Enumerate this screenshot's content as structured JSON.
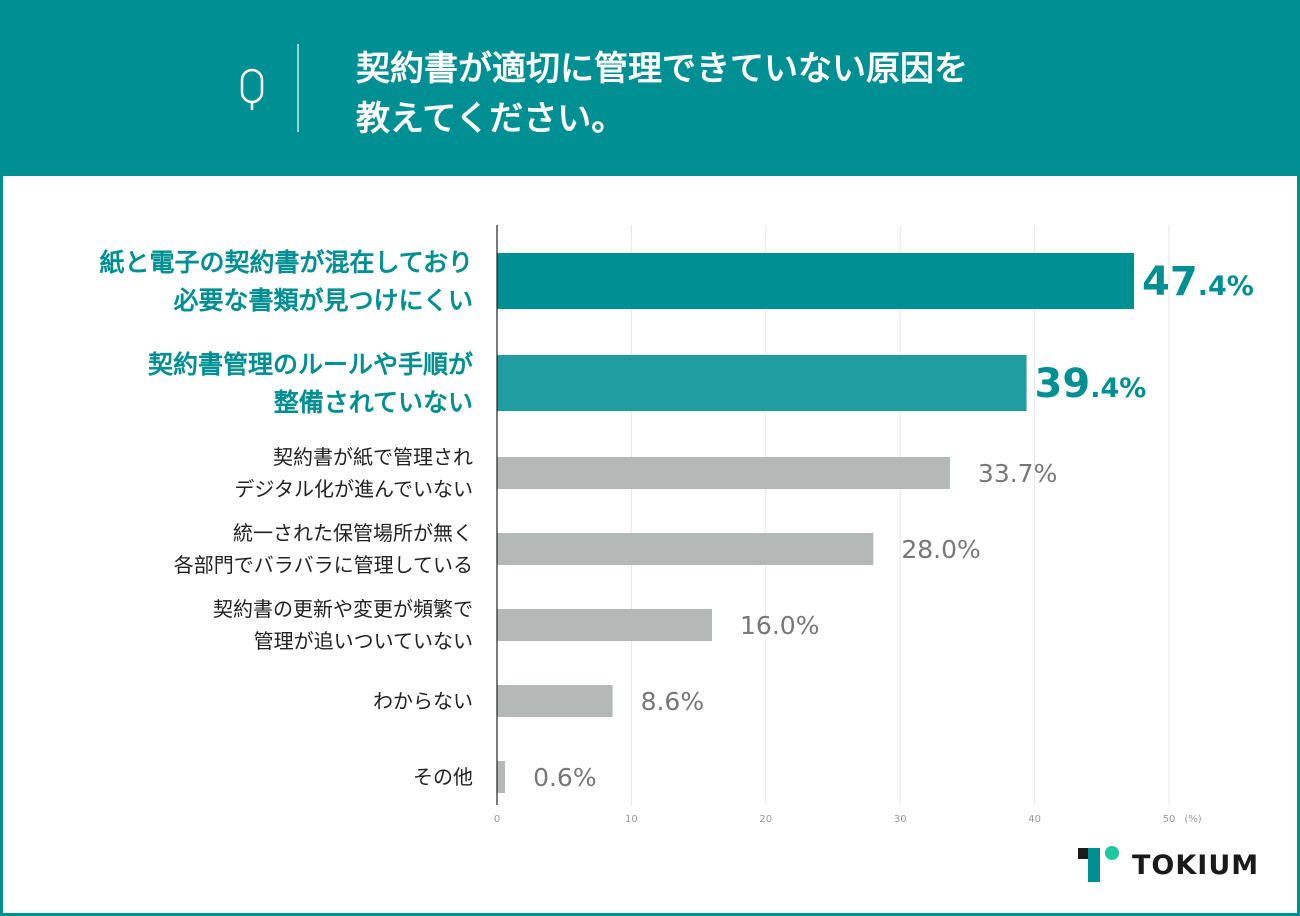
{
  "header": {
    "q_label": "Q",
    "title_line1": "契約書が適切に管理できていない原因を",
    "title_line2": "教えてください。"
  },
  "chart_data": {
    "type": "bar",
    "orientation": "horizontal",
    "title": "契約書が適切に管理できていない原因を教えてください。",
    "categories": [
      [
        "紙と電子の契約書が混在しており",
        "必要な書類が見つけにくい"
      ],
      [
        "契約書管理のルールや手順が",
        "整備されていない"
      ],
      [
        "契約書が紙で管理され",
        "デジタル化が進んでいない"
      ],
      [
        "統一された保管場所が無く",
        "各部門でバラバラに管理している"
      ],
      [
        "契約書の更新や変更が頻繁で",
        "管理が追いついていない"
      ],
      [
        "わからない"
      ],
      [
        "その他"
      ]
    ],
    "values": [
      47.4,
      39.4,
      33.7,
      28.0,
      16.0,
      8.6,
      0.6
    ],
    "value_labels": [
      "47.4%",
      "39.4%",
      "33.7%",
      "28.0%",
      "16.0%",
      "8.6%",
      "0.6%"
    ],
    "highlight": [
      true,
      true,
      false,
      false,
      false,
      false,
      false
    ],
    "colors": [
      "#008f93",
      "#1f9da0",
      "#b4b8b6",
      "#b4b8b6",
      "#b4b8b6",
      "#b4b8b6",
      "#b4b8b6"
    ],
    "xlim": [
      0,
      50
    ],
    "xticks": [
      "0",
      "10",
      "20",
      "30",
      "40",
      "50"
    ],
    "xunit": "(%)",
    "grid": true
  },
  "logo": {
    "text": "TOKIUM"
  }
}
